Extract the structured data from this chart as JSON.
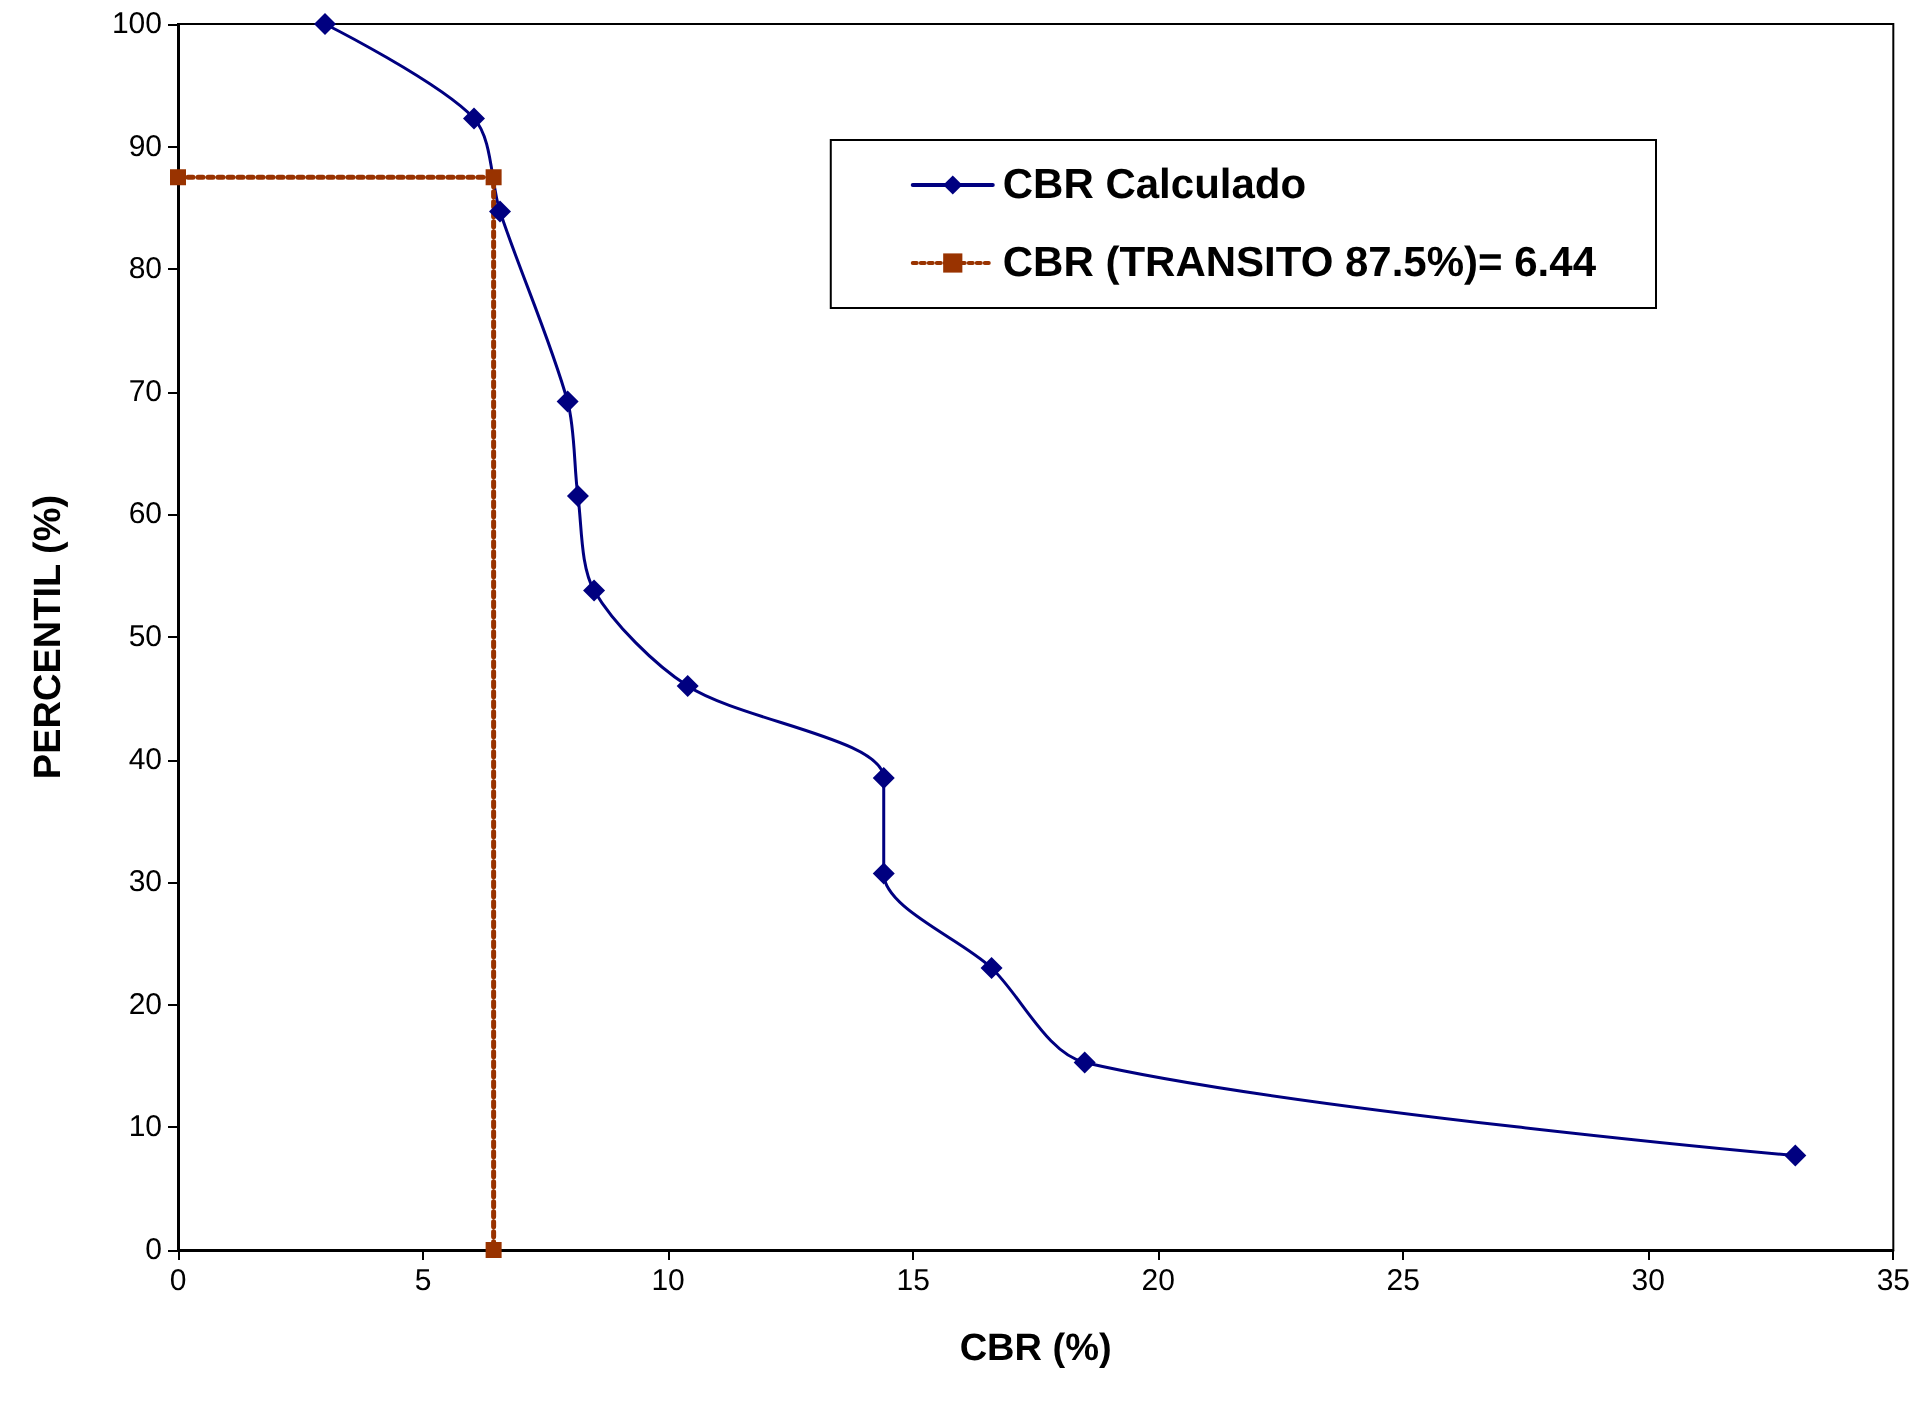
{
  "chart_data": {
    "type": "line",
    "xlabel": "CBR (%)",
    "ylabel": "PERCENTIL (%)",
    "xlim": [
      0,
      35
    ],
    "xticks": [
      0,
      5,
      10,
      15,
      20,
      25,
      30,
      35
    ],
    "ylim": [
      0,
      100
    ],
    "yticks": [
      0,
      10,
      20,
      30,
      40,
      50,
      60,
      70,
      80,
      90,
      100
    ],
    "grid": false,
    "legend": "top right",
    "series": [
      {
        "name": "CBR Calculado",
        "color": "#000080",
        "marker": "diamond",
        "line_style": "solid",
        "x": [
          3.0,
          6.04,
          6.57,
          7.95,
          8.16,
          8.49,
          10.4,
          14.4,
          14.4,
          16.6,
          18.5,
          33.0
        ],
        "values": [
          100,
          92.3,
          84.7,
          69.2,
          61.5,
          53.8,
          46.0,
          38.5,
          30.7,
          23.0,
          15.3,
          7.7
        ]
      },
      {
        "name": "CBR (TRANSITO 87.5%)= 6.44",
        "color": "#993300",
        "marker": "square",
        "line_style": "dotted",
        "x": [
          0,
          6.44,
          6.44
        ],
        "values": [
          87.5,
          87.5,
          0
        ]
      }
    ]
  }
}
